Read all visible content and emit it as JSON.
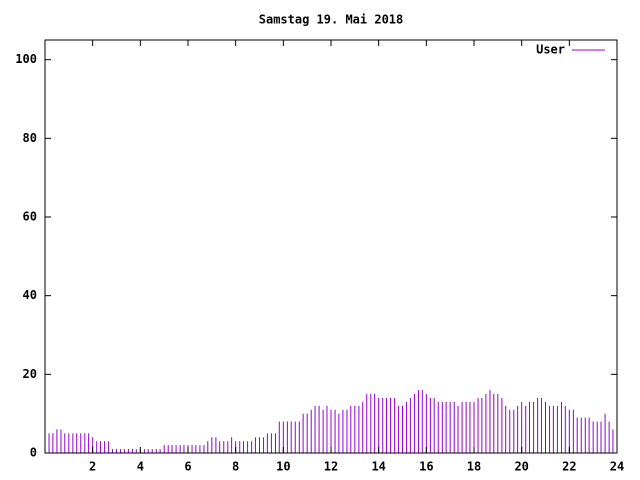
{
  "chart_data": {
    "type": "impulse",
    "title": "Samstag 19. Mai 2018",
    "x": [
      0,
      0.17,
      0.33,
      0.5,
      0.67,
      0.83,
      1,
      1.17,
      1.33,
      1.5,
      1.67,
      1.83,
      2,
      2.17,
      2.33,
      2.5,
      2.67,
      2.83,
      3,
      3.17,
      3.33,
      3.5,
      3.67,
      3.83,
      4,
      4.17,
      4.33,
      4.5,
      4.67,
      4.83,
      5,
      5.17,
      5.33,
      5.5,
      5.67,
      5.83,
      6,
      6.17,
      6.33,
      6.5,
      6.67,
      6.83,
      7,
      7.17,
      7.33,
      7.5,
      7.67,
      7.83,
      8,
      8.17,
      8.33,
      8.5,
      8.67,
      8.83,
      9,
      9.17,
      9.33,
      9.5,
      9.67,
      9.83,
      10,
      10.17,
      10.33,
      10.5,
      10.67,
      10.83,
      11,
      11.17,
      11.33,
      11.5,
      11.67,
      11.83,
      12,
      12.17,
      12.33,
      12.5,
      12.67,
      12.83,
      13,
      13.17,
      13.33,
      13.5,
      13.67,
      13.83,
      14,
      14.17,
      14.33,
      14.5,
      14.67,
      14.83,
      15,
      15.17,
      15.33,
      15.5,
      15.67,
      15.83,
      16,
      16.17,
      16.33,
      16.5,
      16.67,
      16.83,
      17,
      17.17,
      17.33,
      17.5,
      17.67,
      17.83,
      18,
      18.17,
      18.33,
      18.5,
      18.67,
      18.83,
      19,
      19.17,
      19.33,
      19.5,
      19.67,
      19.83,
      20,
      20.17,
      20.33,
      20.5,
      20.67,
      20.83,
      21,
      21.17,
      21.33,
      21.5,
      21.67,
      21.83,
      22,
      22.17,
      22.33,
      22.5,
      22.67,
      22.83,
      23,
      23.17,
      23.33,
      23.5,
      23.67,
      23.83
    ],
    "series": [
      {
        "name": "User",
        "color": "#9400d3",
        "values": [
          5,
          5,
          5,
          6,
          6,
          5,
          5,
          5,
          5,
          5,
          5,
          5,
          4,
          3,
          3,
          3,
          3,
          1,
          1,
          1,
          1,
          1,
          1,
          1,
          1,
          1,
          1,
          1,
          1,
          1,
          2,
          2,
          2,
          2,
          2,
          2,
          2,
          2,
          2,
          2,
          2,
          3,
          4,
          4,
          3,
          3,
          3,
          4,
          3,
          3,
          3,
          3,
          3,
          4,
          4,
          4,
          5,
          5,
          5,
          8,
          8,
          8,
          8,
          8,
          8,
          10,
          10,
          11,
          12,
          12,
          11,
          12,
          11,
          11,
          10,
          11,
          11,
          12,
          12,
          12,
          13,
          15,
          15,
          15,
          14,
          14,
          14,
          14,
          14,
          12,
          12,
          13,
          14,
          15,
          16,
          16,
          15,
          14,
          14,
          13,
          13,
          13,
          13,
          13,
          12,
          13,
          13,
          13,
          13,
          14,
          14,
          15,
          16,
          15,
          15,
          14,
          12,
          11,
          11,
          12,
          13,
          12,
          13,
          13,
          14,
          14,
          13,
          12,
          12,
          12,
          13,
          12,
          11,
          11,
          9,
          9,
          9,
          9,
          8,
          8,
          8,
          10,
          8,
          6
        ]
      }
    ],
    "xlim": [
      0,
      24
    ],
    "xticks": [
      2,
      4,
      6,
      8,
      10,
      12,
      14,
      16,
      18,
      20,
      22,
      24
    ],
    "ylim": [
      0,
      105
    ],
    "yticks": [
      0,
      20,
      40,
      60,
      80,
      100
    ],
    "legend": "top-right"
  }
}
